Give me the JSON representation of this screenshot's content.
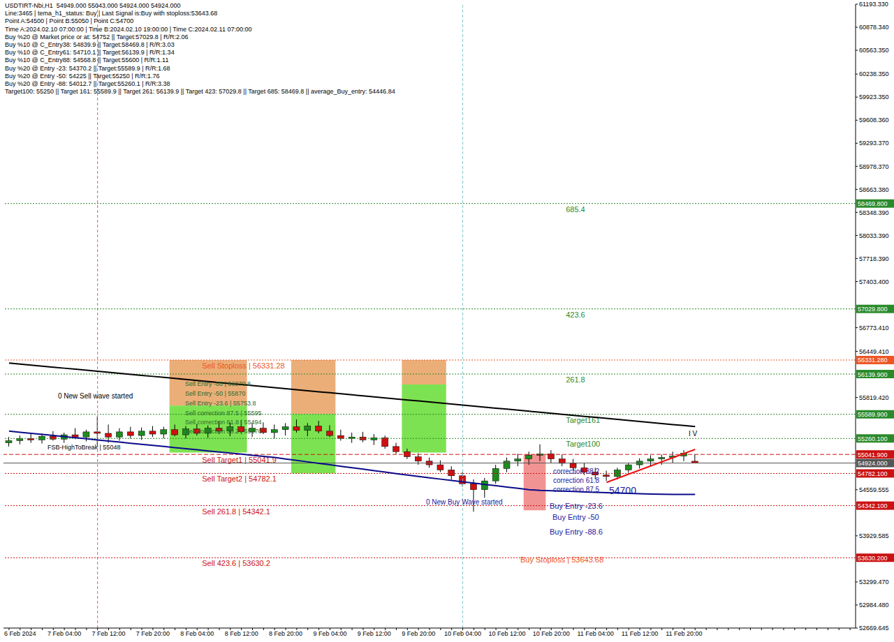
{
  "chart_data": {
    "type": "candlestick",
    "title": "USDTIRT-Nbi,H1  54949.000 55043.000 54924.000 54924.000",
    "header_lines": [
      "Line:3465 | tema_h1_status: Buy | Last Signal is:Buy with stoploss:53643.68",
      "Point A:54500 | Point B:55050 | Point C:54700",
      "Time A:2024.02.10 07:00:00 | Time B:2024.02.10 19:00:00 | Time C:2024.02.11 07:00:00",
      "Buy %20 @ Market price or at: 54752 || Target:57029.8 | R/R:2.06",
      "Buy %10 @ C_Entry38: 54839.9 || Target:58469.8 | R/R:3.03",
      "Buy %10 @ C_Entry61: 54710.1 || Target:56139.9 | R/R:1.34",
      "Buy %10 @ C_Entry88: 54568.8 || Target:55600 | R/R:1.11",
      "Buy %20 @ Entry -23: 54370.2 || Target:55589.9 | R/R:1.68",
      "Buy %20 @ Entry -50: 54225 || Target:55250 | R/R:1.76",
      "Buy %20 @ Entry -88: 54012.7 || Target:55260.1 | R/R:3.38",
      "Target100: 55250 || Target 161: 55589.9 || Target 261: 56139.9 || Target 423: 57029.8 || Target 685: 58469.8 || average_Buy_entry: 54446.84"
    ],
    "categories": [
      null,
      "6 Feb 2024",
      null,
      null,
      null,
      "7 Feb 04:00",
      null,
      null,
      null,
      "7 Feb 12:00",
      null,
      null,
      null,
      "7 Feb 20:00",
      null,
      null,
      null,
      "8 Feb 04:00",
      null,
      null,
      null,
      "8 Feb 12:00",
      null,
      null,
      null,
      "8 Feb 20:00",
      null,
      null,
      null,
      "9 Feb 04:00",
      null,
      null,
      null,
      "9 Feb 12:00",
      null,
      null,
      null,
      "9 Feb 20:00",
      null,
      null,
      null,
      "10 Feb 04:00",
      null,
      null,
      null,
      "10 Feb 12:00",
      null,
      null,
      null,
      "10 Feb 20:00",
      null,
      null,
      null,
      "11 Feb 04:00",
      null,
      null,
      null,
      "11 Feb 12:00",
      null,
      null,
      null,
      "11 Feb 20:00",
      null,
      null,
      null,
      null,
      null,
      null,
      null,
      null,
      null,
      null,
      null,
      null,
      null,
      null,
      null
    ],
    "candles": {
      "color_up": "#1e8c1e",
      "color_down": "#d01010",
      "open": [
        55200,
        55230,
        55260,
        55240,
        55290,
        55250,
        55310,
        55280,
        55350,
        55330,
        55280,
        55350,
        55300,
        55360,
        55320,
        55380,
        55310,
        55390,
        55330,
        55400,
        55360,
        55420,
        55350,
        55400,
        55340,
        55380,
        55420,
        55370,
        55430,
        55360,
        55300,
        55260,
        55280,
        55240,
        55270,
        55150,
        55080,
        55010,
        54950,
        54900,
        54830,
        54750,
        54640,
        54560,
        54680,
        54850,
        54950,
        54980,
        55030,
        55050,
        54980,
        54920,
        54860,
        54800,
        54760,
        54740,
        54830,
        54900,
        54950,
        54980,
        55000,
        55020,
        54949,
        null,
        null,
        null,
        null,
        null,
        null,
        null,
        null,
        null,
        null,
        null,
        null,
        null,
        null
      ],
      "high": [
        55280,
        55300,
        55320,
        55330,
        55360,
        55340,
        55400,
        55380,
        55560,
        55450,
        55400,
        55420,
        55410,
        55430,
        55420,
        55450,
        55430,
        55460,
        55440,
        55500,
        55480,
        55510,
        55470,
        55480,
        55450,
        55470,
        55520,
        55470,
        55500,
        55440,
        55380,
        55340,
        55350,
        55320,
        55300,
        55200,
        55120,
        55060,
        55000,
        54960,
        54880,
        54800,
        54700,
        54720,
        54900,
        55000,
        55050,
        55080,
        55180,
        55100,
        55040,
        54980,
        54920,
        54860,
        54820,
        54860,
        54930,
        54990,
        55030,
        55040,
        55080,
        55100,
        55043,
        null,
        null,
        null,
        null,
        null,
        null,
        null,
        null,
        null,
        null,
        null,
        null,
        null,
        null
      ],
      "low": [
        55150,
        55180,
        55200,
        55190,
        55230,
        55200,
        55250,
        55220,
        55150,
        55200,
        55230,
        55260,
        55240,
        55280,
        55260,
        55290,
        55260,
        55300,
        55270,
        55320,
        55290,
        55330,
        55280,
        55320,
        55260,
        55300,
        55340,
        55290,
        55330,
        55280,
        55230,
        55200,
        55210,
        55170,
        55120,
        55050,
        54980,
        54900,
        54860,
        54800,
        54700,
        54600,
        54260,
        54450,
        54640,
        54800,
        54880,
        54900,
        54950,
        54920,
        54880,
        54820,
        54760,
        54700,
        54680,
        54700,
        54790,
        54850,
        54890,
        54900,
        54930,
        54950,
        54924,
        null,
        null,
        null,
        null,
        null,
        null,
        null,
        null,
        null,
        null,
        null,
        null,
        null,
        null
      ],
      "close": [
        55230,
        55260,
        55240,
        55290,
        55250,
        55310,
        55280,
        55350,
        55330,
        55280,
        55350,
        55300,
        55360,
        55320,
        55380,
        55310,
        55390,
        55330,
        55400,
        55360,
        55420,
        55350,
        55400,
        55340,
        55380,
        55420,
        55370,
        55430,
        55360,
        55300,
        55260,
        55280,
        55240,
        55270,
        55150,
        55080,
        55010,
        54950,
        54900,
        54830,
        54750,
        54640,
        54560,
        54680,
        54850,
        54950,
        54980,
        55030,
        55050,
        54980,
        54920,
        54860,
        54800,
        54760,
        54740,
        54830,
        54900,
        54950,
        54980,
        55000,
        55020,
        55060,
        54924,
        null,
        null,
        null,
        null,
        null,
        null,
        null,
        null,
        null,
        null,
        null,
        null,
        null,
        null
      ]
    },
    "lines": [
      {
        "color": "#000000",
        "values": [
          56290,
          56276,
          56262,
          56248,
          56234,
          56220,
          56206,
          56192,
          56178,
          56164,
          56150,
          56136,
          56122,
          56108,
          56094,
          56080,
          56066,
          56052,
          56038,
          56024,
          56010,
          55996,
          55982,
          55968,
          55954,
          55940,
          55926,
          55912,
          55898,
          55884,
          55870,
          55856,
          55842,
          55828,
          55814,
          55800,
          55786,
          55772,
          55758,
          55744,
          55730,
          55716,
          55702,
          55688,
          55674,
          55660,
          55646,
          55632,
          55618,
          55604,
          55590,
          55576,
          55562,
          55548,
          55534,
          55520,
          55506,
          55492,
          55478,
          55464,
          55450,
          55436,
          55422,
          null,
          null,
          null,
          null,
          null,
          null,
          null,
          null,
          null,
          null,
          null,
          null,
          null,
          null
        ]
      },
      {
        "color": "#0a0a8a",
        "values": [
          55360,
          55345,
          55330,
          55315,
          55300,
          55285,
          55270,
          55255,
          55240,
          55225,
          55210,
          55195,
          55180,
          55165,
          55150,
          55135,
          55120,
          55105,
          55090,
          55075,
          55060,
          55045,
          55030,
          55015,
          55000,
          54980,
          54960,
          54940,
          54920,
          54900,
          54880,
          54860,
          54840,
          54820,
          54800,
          54780,
          54760,
          54740,
          54722,
          54704,
          54686,
          54668,
          54650,
          54632,
          54614,
          54596,
          54578,
          54560,
          54550,
          54545,
          54540,
          54535,
          54530,
          54525,
          54520,
          54515,
          54510,
          54505,
          54500,
          54498,
          54496,
          54495,
          54495,
          null,
          null,
          null,
          null,
          null,
          null,
          null,
          null,
          null,
          null,
          null,
          null,
          null,
          null
        ]
      }
    ],
    "ylim": [
      52669.645,
      61193.33
    ],
    "yticks": [
      {
        "value": 52669.645,
        "label": "52669.645"
      },
      {
        "value": 52984.48,
        "label": "52984.480"
      },
      {
        "value": 53299.47,
        "label": "53299.470"
      },
      {
        "value": 53929.585,
        "label": "53929.585"
      },
      {
        "value": 54559.555,
        "label": "54559.555"
      },
      {
        "value": 55819.42,
        "label": "55819.420"
      },
      {
        "value": 56449.41,
        "label": "56449.410"
      },
      {
        "value": 56773.41,
        "label": "56773.410"
      },
      {
        "value": 57403.4,
        "label": "57403.400"
      },
      {
        "value": 57718.39,
        "label": "57718.390"
      },
      {
        "value": 58033.39,
        "label": "58033.390"
      },
      {
        "value": 58348.39,
        "label": "58348.390"
      },
      {
        "value": 58663.38,
        "label": "58663.380"
      },
      {
        "value": 58978.37,
        "label": "58978.370"
      },
      {
        "value": 59293.37,
        "label": "59293.370"
      },
      {
        "value": 59608.36,
        "label": "59608.360"
      },
      {
        "value": 59923.35,
        "label": "59923.350"
      },
      {
        "value": 60238.35,
        "label": "60238.350"
      },
      {
        "value": 60563.35,
        "label": "60563.350"
      },
      {
        "value": 60878.34,
        "label": "60878.340"
      },
      {
        "value": 61193.33,
        "label": "61193.330"
      }
    ],
    "grid": false,
    "levels": [
      {
        "value": 58469.8,
        "label": "58469.800",
        "color": "#2a8a2a",
        "line_style": "dotted",
        "tag": "685.4"
      },
      {
        "value": 57029.8,
        "label": "57029.800",
        "color": "#2a8a2a",
        "line_style": "dotted",
        "tag": "423.6"
      },
      {
        "value": 56331.28,
        "label": "56331.280",
        "color": "#ee5522",
        "line_style": "dotted",
        "note": "Sell Stoploss | 56331.28"
      },
      {
        "value": 56139.9,
        "label": "56139.900",
        "color": "#2a8a2a",
        "line_style": "dotted",
        "tag": "261.8"
      },
      {
        "value": 55589.9,
        "label": "55589.900",
        "color": "#2a8a2a",
        "line_style": "dotted",
        "tag": "Target161"
      },
      {
        "value": 55260.1,
        "label": "55260.100",
        "color": "#2a8a2a",
        "line_style": "dotted",
        "tag": "Target100"
      },
      {
        "value": 55041.9,
        "label": "55041.900",
        "color": "#cc1111",
        "line_style": "dashed",
        "note": "Sell Target1 | 55041.9"
      },
      {
        "value": 54924,
        "label": "54924.000",
        "color": "#555555",
        "line_style": "solid"
      },
      {
        "value": 54782.1,
        "label": "54782.100",
        "color": "#cc1111",
        "line_style": "dotted",
        "note": "Sell Target2 | 54782.1"
      },
      {
        "value": 54342.1,
        "label": "54342.100",
        "color": "#cc1111",
        "line_style": "dotted",
        "note": "Sell 261.8 | 54342.1"
      },
      {
        "value": 53630.2,
        "label": "53630.200",
        "color": "#cc1111",
        "line_style": "dotted",
        "note": "Sell 423.6 | 53630.2"
      }
    ],
    "zones": [
      {
        "bars": [
          15,
          21
        ],
        "bands": [
          {
            "from": 56331.28,
            "to": 55709,
            "color": "#e8a060"
          },
          {
            "from": 55709,
            "to": 55068,
            "color": "#66dd33"
          }
        ]
      },
      {
        "bars": [
          26,
          29
        ],
        "bands": [
          {
            "from": 56331.28,
            "to": 55594,
            "color": "#e8a060"
          },
          {
            "from": 55594,
            "to": 54784,
            "color": "#66dd33"
          }
        ]
      },
      {
        "bars": [
          36,
          39
        ],
        "bands": [
          {
            "from": 56331.28,
            "to": 55996,
            "color": "#e8a060"
          },
          {
            "from": 55996,
            "to": 55068,
            "color": "#66dd33"
          }
        ]
      },
      {
        "bars": [
          47,
          48
        ],
        "bands": [
          {
            "from": 55041.9,
            "to": 54278,
            "color": "#f08080"
          }
        ]
      }
    ],
    "trend_line": {
      "color": "#ee1111",
      "from": [
        54,
        54660
      ],
      "to": [
        62,
        55110
      ]
    },
    "vlines": [
      {
        "bar": 8,
        "color": "#e0508a"
      },
      {
        "bar": 41,
        "color": "#7fc8c8"
      }
    ],
    "annotations": [
      {
        "text": "0 New Sell wave started",
        "color": "#000000"
      },
      {
        "text": "FSB-HighToBreak | 55048",
        "color": "#000000"
      },
      {
        "text": "Sell Entry -88 | 56070.8",
        "color": "#2a6a2a"
      },
      {
        "text": "Sell Entry -50 | 55870",
        "color": "#2a6a2a"
      },
      {
        "text": "Sell Entry -23.6 | 55753.8",
        "color": "#2a6a2a"
      },
      {
        "text": "Sell correction 87.5 | 55595",
        "color": "#2a6a2a"
      },
      {
        "text": "Sell correction 61.8 | 55494",
        "color": "#2a6a2a"
      },
      {
        "text": "Sell correction 38.2 | 55376",
        "color": "#2a6a2a"
      },
      {
        "text": "0 New Buy Wave started",
        "color": "#1a1aa0"
      },
      {
        "text": "correction 38.2",
        "color": "#1a1aa0"
      },
      {
        "text": "correction 61.8",
        "color": "#1a1aa0"
      },
      {
        "text": "correction 87.5",
        "color": "#1a1aa0"
      },
      {
        "text": "54700",
        "color": "#1a1aa0"
      },
      {
        "text": "Buy Entry -23.6",
        "color": "#1a1aa0"
      },
      {
        "text": "Buy Entry -50",
        "color": "#1a1aa0"
      },
      {
        "text": "Buy Entry -88.6",
        "color": "#1a1aa0"
      },
      {
        "text": "Buy Stoploss | 53643.68",
        "color": "#ee5522"
      },
      {
        "text": "I V",
        "color": "#000000"
      }
    ]
  }
}
